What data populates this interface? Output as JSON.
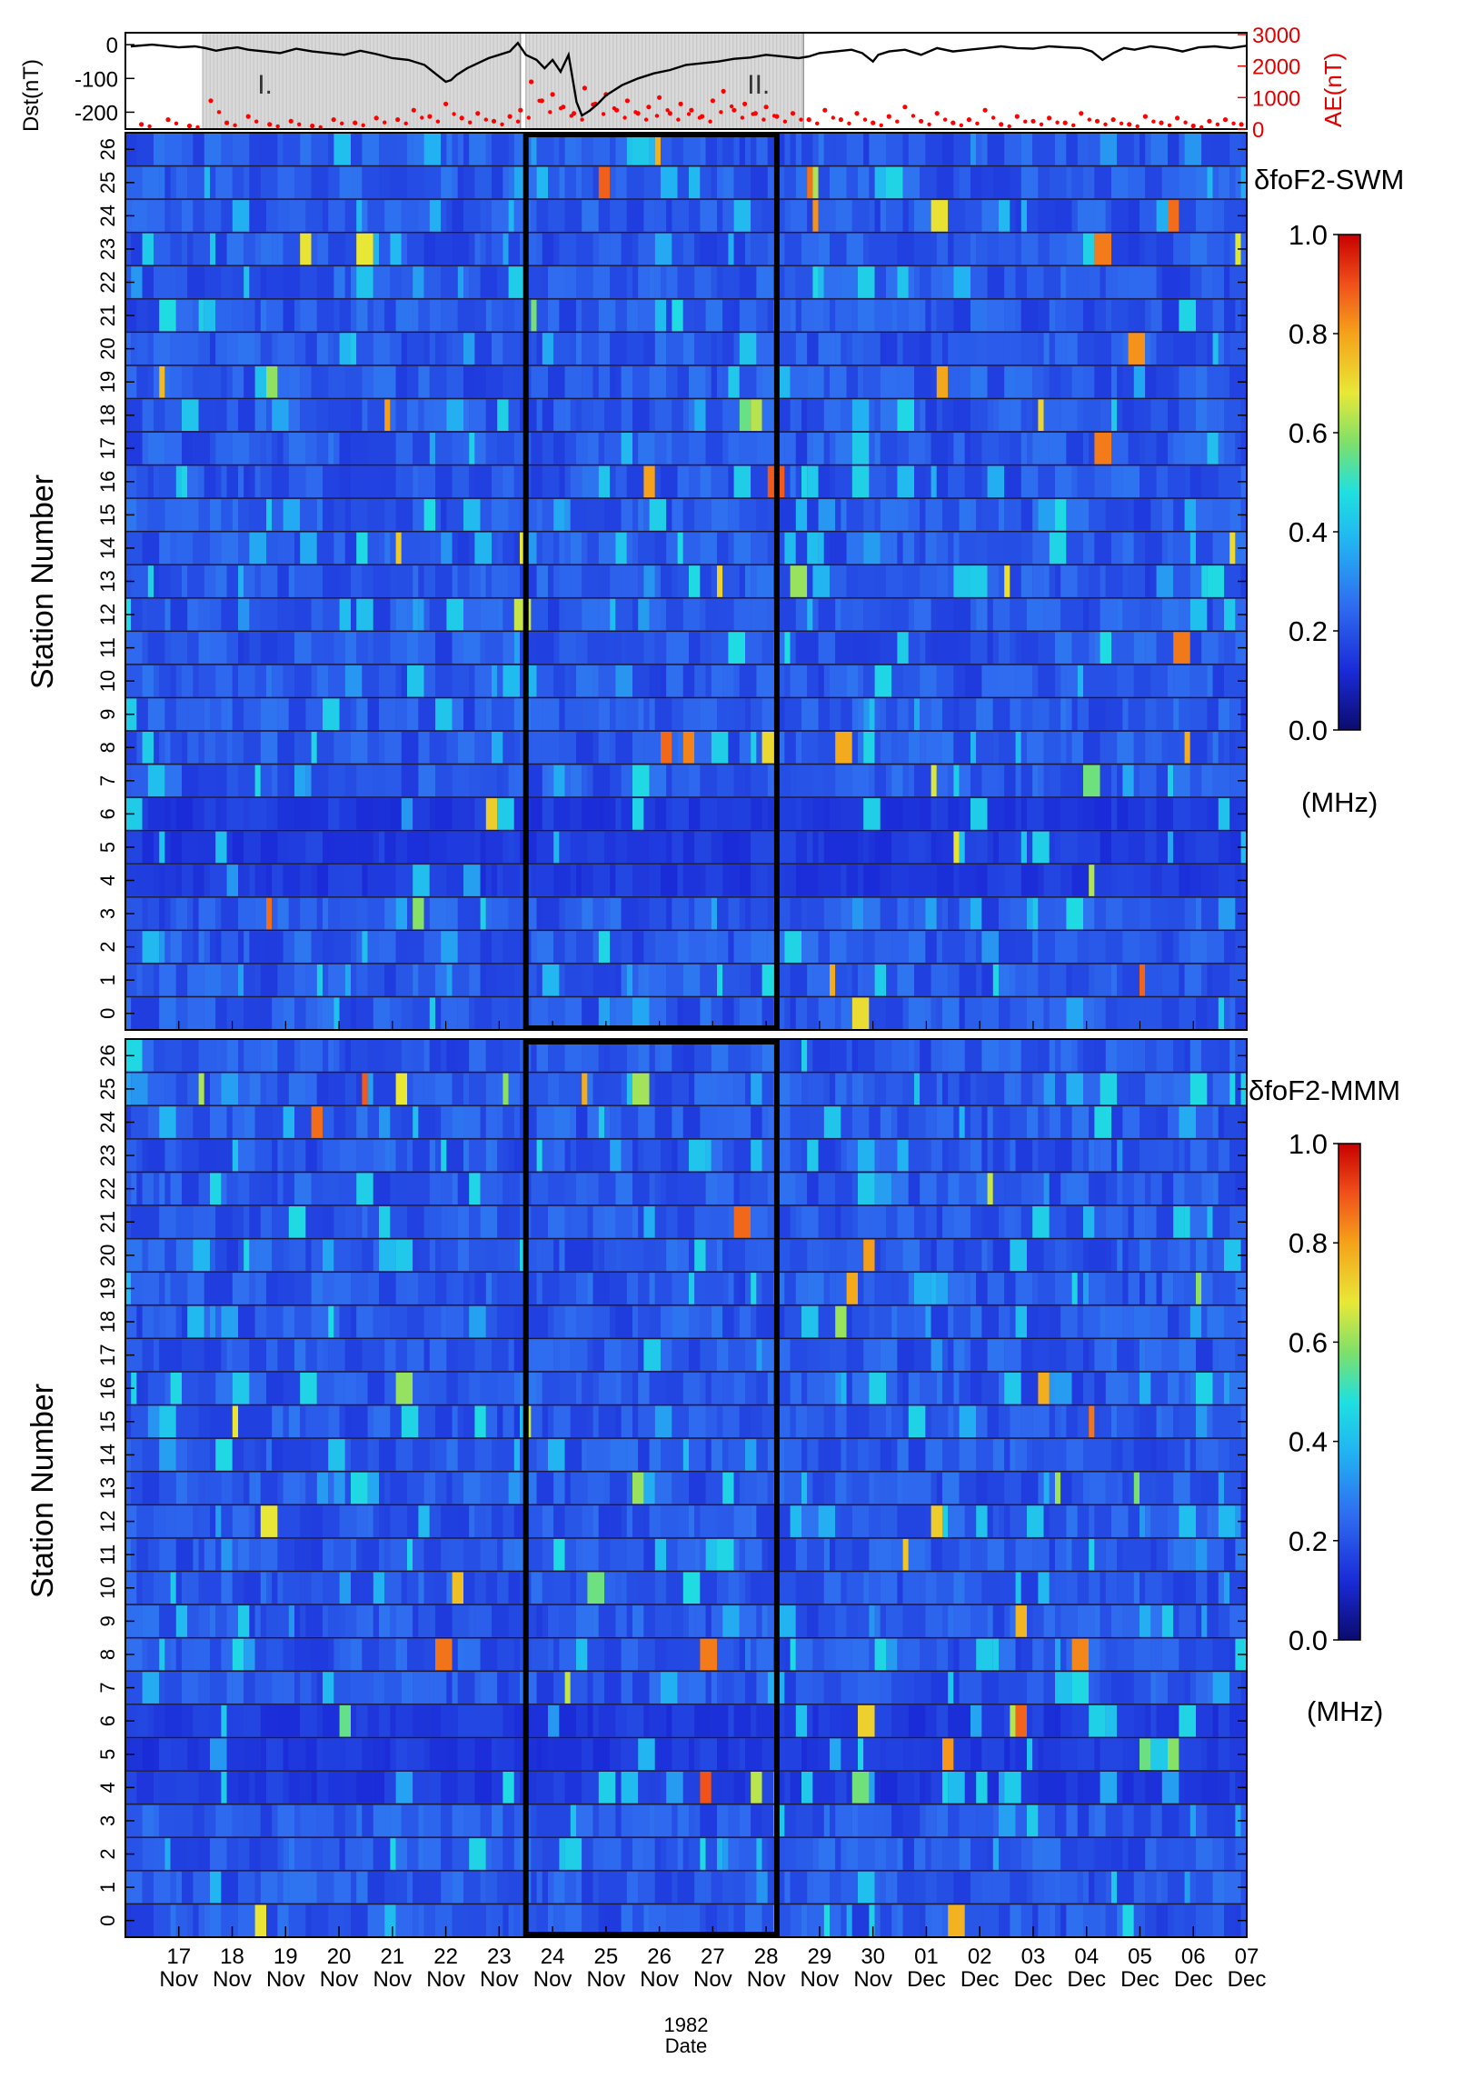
{
  "chart_data": [
    {
      "type": "line",
      "title": "",
      "ylabel": "Dst(nT)",
      "ylabel_right": "AE(nT)",
      "ylim": [
        -250,
        30
      ],
      "ylim_right": [
        0,
        3000
      ],
      "yticks": [
        "0",
        "-100",
        "-200"
      ],
      "yticks_right": [
        "0",
        "1000",
        "2000",
        "3000"
      ],
      "period_labels": [
        "I.",
        "II."
      ],
      "period_ranges_days": [
        [
          17.45,
          23.4
        ],
        [
          23.5,
          28.7
        ]
      ],
      "series": [
        {
          "name": "Dst",
          "color": "#000000",
          "x": [
            16.1,
            16.5,
            17,
            17.3,
            17.5,
            17.7,
            17.9,
            18.1,
            18.3,
            18.6,
            18.9,
            19.2,
            19.5,
            19.8,
            20.1,
            20.4,
            20.7,
            21,
            21.3,
            21.6,
            21.8,
            22,
            22.1,
            22.2,
            22.4,
            22.6,
            22.8,
            23,
            23.2,
            23.35,
            23.5,
            23.7,
            23.85,
            24,
            24.15,
            24.3,
            24.45,
            24.55,
            24.7,
            24.85,
            25,
            25.3,
            25.6,
            25.9,
            26.2,
            26.5,
            26.8,
            27.1,
            27.4,
            27.7,
            28,
            28.3,
            28.6,
            28.8,
            29,
            29.3,
            29.6,
            29.8,
            30,
            30.1,
            30.3,
            30.6,
            30.9,
            31.2,
            31.5,
            31.8,
            32.1,
            32.4,
            32.7,
            33,
            33.3,
            33.6,
            33.9,
            34.1,
            34.3,
            34.5,
            34.7,
            34.9,
            35.2,
            35.5,
            35.8,
            36.1,
            36.4,
            36.7,
            37
          ],
          "values": [
            -5,
            0,
            -8,
            -5,
            -10,
            -18,
            -12,
            -8,
            -15,
            -20,
            -25,
            -12,
            -20,
            -25,
            -30,
            -18,
            -28,
            -40,
            -45,
            -60,
            -85,
            -110,
            -105,
            -90,
            -70,
            -55,
            -40,
            -30,
            -20,
            5,
            -30,
            -45,
            -70,
            -45,
            -80,
            -30,
            -170,
            -210,
            -195,
            -175,
            -150,
            -120,
            -100,
            -85,
            -75,
            -60,
            -55,
            -50,
            -42,
            -38,
            -30,
            -35,
            -40,
            -35,
            -25,
            -20,
            -15,
            -25,
            -50,
            -30,
            -20,
            -15,
            -30,
            -10,
            -20,
            -15,
            -10,
            -5,
            -10,
            -12,
            -5,
            -8,
            -10,
            -20,
            -45,
            -25,
            -10,
            -15,
            -5,
            -10,
            -20,
            -8,
            -5,
            -10,
            -3
          ]
        },
        {
          "name": "AE",
          "color": "#ff0000",
          "axis": "right",
          "x": [
            16.3,
            16.8,
            17.2,
            17.6,
            17.9,
            18.3,
            18.7,
            19.1,
            19.5,
            19.9,
            20.3,
            20.7,
            21.1,
            21.4,
            21.7,
            22,
            22.3,
            22.6,
            22.9,
            23.2,
            23.4,
            23.6,
            23.8,
            24,
            24.2,
            24.4,
            24.6,
            24.8,
            25,
            25.2,
            25.4,
            25.6,
            25.8,
            26,
            26.2,
            26.4,
            26.6,
            26.8,
            27,
            27.2,
            27.4,
            27.6,
            27.8,
            28,
            28.2,
            28.5,
            28.8,
            29.1,
            29.4,
            29.7,
            30,
            30.3,
            30.6,
            30.9,
            31.2,
            31.5,
            31.8,
            32.1,
            32.4,
            32.7,
            33,
            33.3,
            33.6,
            33.9,
            34.2,
            34.5,
            34.8,
            35.1,
            35.4,
            35.7,
            36,
            36.3,
            36.6,
            36.9
          ],
          "values": [
            150,
            300,
            100,
            900,
            200,
            400,
            150,
            250,
            100,
            300,
            200,
            350,
            300,
            600,
            400,
            800,
            350,
            500,
            250,
            400,
            600,
            1500,
            900,
            1100,
            700,
            500,
            1300,
            800,
            1100,
            600,
            900,
            500,
            700,
            1000,
            500,
            800,
            600,
            400,
            900,
            1200,
            600,
            800,
            500,
            700,
            400,
            500,
            300,
            600,
            300,
            500,
            200,
            400,
            700,
            250,
            500,
            200,
            300,
            600,
            150,
            400,
            250,
            350,
            200,
            500,
            250,
            300,
            150,
            400,
            200,
            350,
            100,
            250,
            300,
            150
          ]
        }
      ]
    },
    {
      "type": "heatmap",
      "label": "δfoF2-SWM",
      "ylabel": "Station Number",
      "stations": [
        "0",
        "1",
        "2",
        "3",
        "4",
        "5",
        "6",
        "7",
        "8",
        "9",
        "10",
        "11",
        "12",
        "13",
        "14",
        "15",
        "16",
        "17",
        "18",
        "19",
        "20",
        "21",
        "22",
        "23",
        "24",
        "25",
        "26"
      ],
      "x_start_day": 16.0,
      "x_end_day": 37.0,
      "colorbar_range": [
        0.0,
        1.0
      ],
      "colorbar_ticks": [
        "0.0",
        "0.2",
        "0.4",
        "0.6",
        "0.8",
        "1.0"
      ],
      "colorbar_unit": "(MHz)",
      "highlight_box_days": [
        23.5,
        28.2
      ],
      "seed": 7
    },
    {
      "type": "heatmap",
      "label": "δfoF2-MMM",
      "ylabel": "Station Number",
      "stations": [
        "0",
        "1",
        "2",
        "3",
        "4",
        "5",
        "6",
        "7",
        "8",
        "9",
        "10",
        "11",
        "12",
        "13",
        "14",
        "15",
        "16",
        "17",
        "18",
        "19",
        "20",
        "21",
        "22",
        "23",
        "24",
        "25",
        "26"
      ],
      "x_start_day": 16.0,
      "x_end_day": 37.0,
      "colorbar_range": [
        0.0,
        1.0
      ],
      "colorbar_ticks": [
        "0.0",
        "0.2",
        "0.4",
        "0.6",
        "0.8",
        "1.0"
      ],
      "colorbar_unit": "(MHz)",
      "highlight_box_days": [
        23.5,
        28.2
      ],
      "seed": 19
    }
  ],
  "x_axis": {
    "date_ticks": [
      {
        "day": "17",
        "month": "Nov"
      },
      {
        "day": "18",
        "month": "Nov"
      },
      {
        "day": "19",
        "month": "Nov"
      },
      {
        "day": "20",
        "month": "Nov"
      },
      {
        "day": "21",
        "month": "Nov"
      },
      {
        "day": "22",
        "month": "Nov"
      },
      {
        "day": "23",
        "month": "Nov"
      },
      {
        "day": "24",
        "month": "Nov"
      },
      {
        "day": "25",
        "month": "Nov"
      },
      {
        "day": "26",
        "month": "Nov"
      },
      {
        "day": "27",
        "month": "Nov"
      },
      {
        "day": "28",
        "month": "Nov"
      },
      {
        "day": "29",
        "month": "Nov"
      },
      {
        "day": "30",
        "month": "Nov"
      },
      {
        "day": "01",
        "month": "Dec"
      },
      {
        "day": "02",
        "month": "Dec"
      },
      {
        "day": "03",
        "month": "Dec"
      },
      {
        "day": "04",
        "month": "Dec"
      },
      {
        "day": "05",
        "month": "Dec"
      },
      {
        "day": "06",
        "month": "Dec"
      },
      {
        "day": "07",
        "month": "Dec"
      }
    ],
    "year": "1982",
    "label": "Date"
  }
}
